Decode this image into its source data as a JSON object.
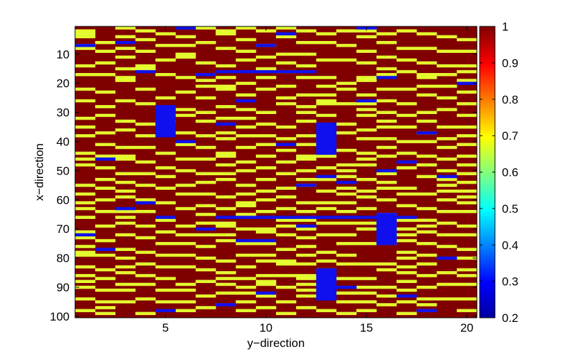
{
  "chart_data": {
    "type": "heatmap",
    "xlabel": "y−direction",
    "ylabel": "x−direction",
    "xlim": [
      0.5,
      20.5
    ],
    "ylim": [
      0.5,
      100.5
    ],
    "x_ticks": [
      "5",
      "10",
      "15",
      "20"
    ],
    "y_ticks": [
      "10",
      "20",
      "30",
      "40",
      "50",
      "60",
      "70",
      "80",
      "90",
      "100"
    ],
    "colorbar": {
      "range": [
        0.2,
        1
      ],
      "ticks": [
        "0.2",
        "0.3",
        "0.4",
        "0.5",
        "0.6",
        "0.7",
        "0.8",
        "0.9",
        "1"
      ],
      "colormap": "jet"
    },
    "value_levels": {
      "dark_red": 1.0,
      "yellow": 0.68,
      "blue": 0.21
    },
    "colors": {
      "dark_red": "#800000",
      "yellow": "#e4fb2f",
      "blue": "#1010ee"
    },
    "note_levels": "cells take one of three values",
    "yellow_cells": [
      [
        2,
        3,
        4,
        7,
        8,
        14,
        17,
        22,
        26,
        32,
        35,
        38,
        44,
        46,
        48,
        55,
        58,
        61,
        63,
        66,
        71,
        73,
        76,
        78,
        79,
        83,
        86,
        88,
        90,
        94,
        98
      ],
      [
        6,
        9,
        13,
        17,
        23,
        28,
        31,
        37,
        41,
        45,
        49,
        53,
        56,
        60,
        64,
        69,
        74,
        79,
        84,
        87,
        91,
        95,
        97,
        99
      ],
      [
        1,
        4,
        8,
        11,
        15,
        18,
        19,
        26,
        33,
        36,
        42,
        45,
        46,
        51,
        54,
        57,
        59,
        64,
        66,
        68,
        72,
        77,
        80,
        83,
        85,
        89,
        91,
        95
      ],
      [
        2,
        5,
        9,
        14,
        15,
        22,
        27,
        34,
        38,
        42,
        47,
        51,
        55,
        60,
        64,
        69,
        73,
        78,
        82,
        86,
        89,
        94,
        99
      ],
      [
        3,
        7,
        12,
        17,
        25,
        33,
        44,
        49,
        52,
        56,
        61,
        67,
        71,
        75,
        79,
        83,
        87,
        91,
        95
      ],
      [
        4,
        7,
        10,
        11,
        18,
        23,
        29,
        31,
        37,
        41,
        46,
        50,
        55,
        58,
        63,
        69,
        72,
        75,
        79,
        83,
        89,
        91,
        95,
        98
      ],
      [
        1,
        6,
        13,
        17,
        19,
        21,
        25,
        30,
        33,
        38,
        42,
        46,
        51,
        54,
        58,
        62,
        65,
        68,
        72,
        76,
        80,
        84,
        88,
        93,
        97
      ],
      [
        2,
        3,
        8,
        14,
        18,
        21,
        22,
        28,
        32,
        37,
        39,
        44,
        45,
        48,
        51,
        53,
        59,
        63,
        68,
        69,
        72,
        74,
        81,
        85,
        87,
        89,
        92,
        96
      ],
      [
        1,
        5,
        9,
        12,
        20,
        24,
        29,
        32,
        35,
        38,
        42,
        47,
        50,
        55,
        58,
        61,
        62,
        65,
        70,
        75,
        79,
        83,
        87,
        90,
        92,
        95,
        98
      ],
      [
        2,
        7,
        11,
        15,
        18,
        22,
        30,
        34,
        38,
        41,
        45,
        49,
        53,
        57,
        60,
        64,
        70,
        71,
        75,
        79,
        81,
        86,
        88,
        89,
        93,
        97
      ],
      [
        1,
        4,
        10,
        13,
        16,
        21,
        25,
        27,
        35,
        39,
        43,
        47,
        51,
        56,
        59,
        63,
        67,
        69,
        72,
        77,
        81,
        82,
        86,
        90,
        95,
        99
      ],
      [
        2,
        6,
        10,
        14,
        18,
        24,
        28,
        30,
        33,
        38,
        41,
        45,
        46,
        50,
        53,
        55,
        61,
        64,
        67,
        70,
        73,
        76,
        79,
        82,
        86,
        87,
        89,
        91,
        93,
        97
      ],
      [
        3,
        6,
        12,
        18,
        21,
        24,
        26,
        27,
        31,
        40,
        45,
        49,
        53,
        57,
        61,
        63,
        68,
        72,
        78,
        81,
        84,
        89,
        98
      ],
      [
        2,
        7,
        12,
        20,
        22,
        27,
        34,
        37,
        43,
        48,
        50,
        52,
        56,
        58,
        61,
        64,
        68,
        72,
        75,
        79,
        82,
        87,
        92,
        95,
        99
      ],
      [
        2,
        4,
        9,
        13,
        18,
        19,
        24,
        27,
        29,
        31,
        36,
        39,
        44,
        46,
        48,
        53,
        57,
        59,
        63,
        68,
        70,
        75,
        82,
        87,
        90,
        92,
        95,
        98
      ],
      [
        3,
        6,
        11,
        15,
        17,
        22,
        26,
        30,
        33,
        35,
        39,
        42,
        45,
        51,
        54,
        56,
        60,
        65,
        70,
        75,
        82,
        84,
        90,
        93,
        96
      ],
      [
        2,
        8,
        12,
        16,
        22,
        27,
        31,
        35,
        40,
        44,
        49,
        56,
        58,
        62,
        67,
        70,
        72,
        74,
        78,
        80,
        83,
        85,
        88,
        91,
        95,
        99
      ],
      [
        3,
        8,
        13,
        17,
        18,
        21,
        24,
        30,
        33,
        37,
        40,
        45,
        48,
        52,
        58,
        63,
        67,
        69,
        71,
        75,
        79,
        82,
        86,
        90,
        94,
        96,
        98
      ],
      [
        4,
        9,
        14,
        17,
        21,
        25,
        29,
        35,
        39,
        42,
        46,
        50,
        53,
        55,
        57,
        60,
        64,
        68,
        72,
        76,
        80,
        85,
        89,
        94
      ],
      [
        5,
        9,
        14,
        16,
        19,
        23,
        27,
        31,
        35,
        38,
        41,
        45,
        48,
        51,
        54,
        57,
        59,
        61,
        64,
        69,
        72,
        77,
        80,
        84,
        86,
        89,
        94,
        98
      ]
    ],
    "blue_cells": [
      [
        [
          7,
          7,
          1
        ],
        [
          72,
          72,
          1
        ]
      ],
      [
        [
          46,
          46,
          1
        ],
        [
          77,
          77,
          1
        ]
      ],
      [
        [
          6,
          6,
          1
        ],
        [
          63,
          63,
          1
        ]
      ],
      [
        [
          16,
          16,
          1
        ],
        [
          61,
          61,
          1
        ]
      ],
      [
        [
          28,
          38,
          1
        ],
        [
          66,
          66,
          1
        ],
        [
          98,
          98,
          1
        ]
      ],
      [
        [
          1,
          1,
          1
        ],
        [
          40,
          40,
          1
        ]
      ],
      [
        [
          17,
          17,
          1
        ],
        [
          70,
          70,
          1
        ]
      ],
      [
        [
          16,
          16,
          5
        ],
        [
          34,
          34,
          1
        ],
        [
          66,
          66,
          10
        ],
        [
          96,
          96,
          1
        ]
      ],
      [
        [
          26,
          26,
          1
        ],
        [
          74,
          74,
          1
        ]
      ],
      [
        [
          7,
          7,
          1
        ],
        [
          74,
          74,
          1
        ],
        [
          92,
          92,
          1
        ]
      ],
      [
        [
          3,
          3,
          1
        ],
        [
          41,
          41,
          1
        ]
      ],
      [
        [
          55,
          55,
          1
        ],
        [
          69,
          69,
          1
        ]
      ],
      [
        [
          34,
          44,
          1
        ],
        [
          52,
          52,
          1
        ],
        [
          84,
          94,
          1
        ]
      ],
      [
        [
          54,
          54,
          1
        ],
        [
          90,
          90,
          1
        ]
      ],
      [
        [
          1,
          1,
          1
        ],
        [
          26,
          26,
          1
        ]
      ],
      [
        [
          18,
          18,
          1
        ],
        [
          50,
          50,
          1
        ],
        [
          65,
          75,
          1
        ]
      ],
      [
        [
          47,
          47,
          1
        ],
        [
          93,
          93,
          1
        ]
      ],
      [
        [
          37,
          37,
          1
        ],
        [
          98,
          98,
          1
        ]
      ],
      [
        [
          52,
          52,
          1
        ],
        [
          80,
          80,
          1
        ]
      ],
      [
        [
          20,
          20,
          1
        ]
      ]
    ]
  }
}
